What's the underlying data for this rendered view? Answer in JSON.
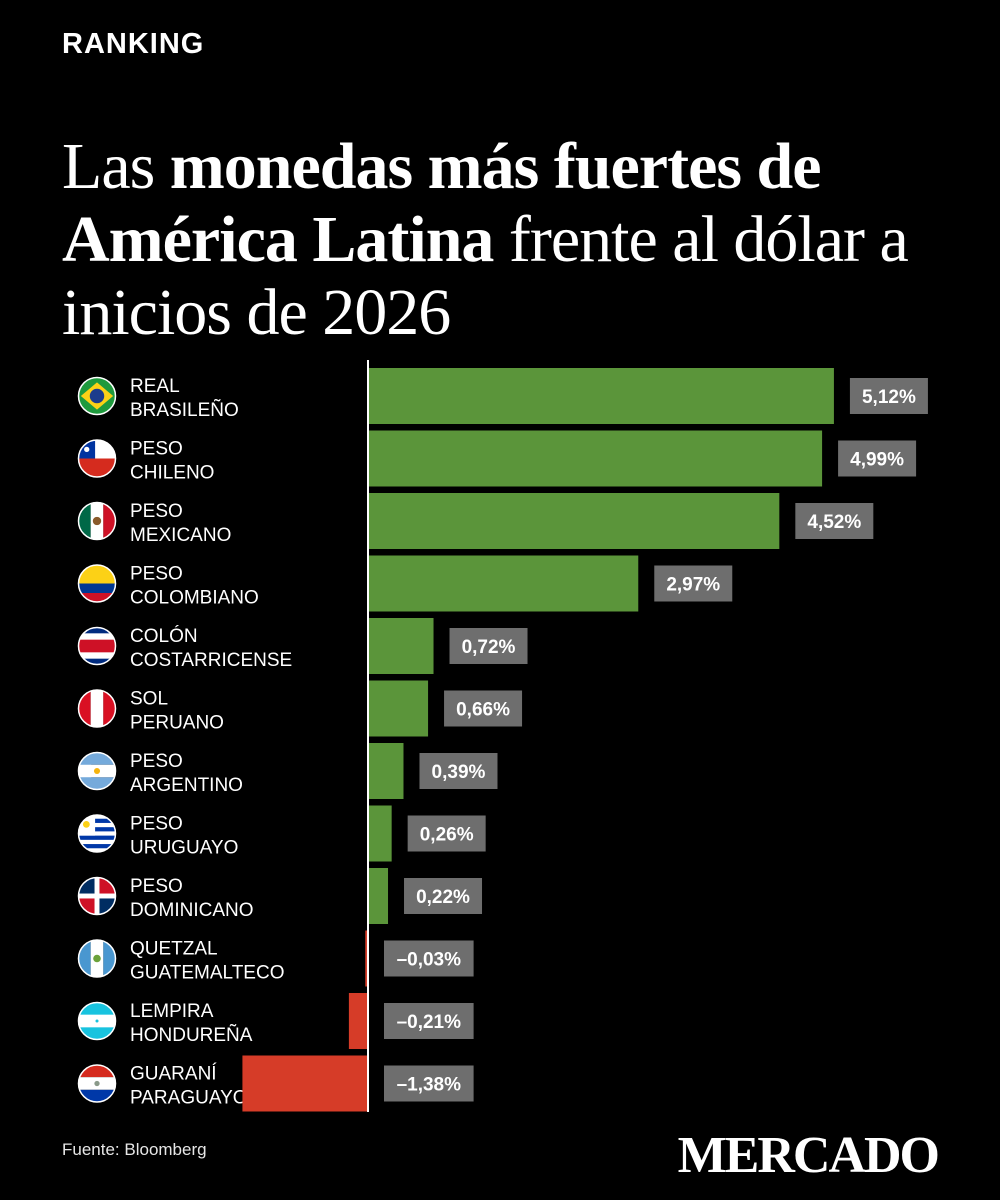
{
  "header": {
    "kicker": "RANKING",
    "title_p1": "Las ",
    "title_b1": "monedas más fuertes de América Latina",
    "title_p2": " frente al dólar a inicios de 2026"
  },
  "footer": {
    "source": "Fuente: Bloomberg",
    "logo": "MERCADO"
  },
  "colors": {
    "positive": "#5b953a",
    "negative": "#d63c28",
    "label_bg": "#6e6e6e",
    "axis": "#ffffff"
  },
  "chart_data": {
    "type": "bar",
    "orientation": "horizontal",
    "categories": [
      "REAL BRASILEÑO",
      "PESO CHILENO",
      "PESO MEXICANO",
      "PESO COLOMBIANO",
      "COLÓN COSTARRICENSE",
      "SOL PERUANO",
      "PESO ARGENTINO",
      "PESO URUGUAYO",
      "PESO DOMINICANO",
      "QUETZAL GUATEMALTECO",
      "LEMPIRA HONDUREÑA",
      "GUARANÍ PARAGUAYO"
    ],
    "category_lines": [
      [
        "REAL",
        "BRASILEÑO"
      ],
      [
        "PESO",
        "CHILENO"
      ],
      [
        "PESO",
        "MEXICANO"
      ],
      [
        "PESO",
        "COLOMBIANO"
      ],
      [
        "COLÓN",
        "COSTARRICENSE"
      ],
      [
        "SOL",
        "PERUANO"
      ],
      [
        "PESO",
        "ARGENTINO"
      ],
      [
        "PESO",
        "URUGUAYO"
      ],
      [
        "PESO",
        "DOMINICANO"
      ],
      [
        "QUETZAL",
        "GUATEMALTECO"
      ],
      [
        "LEMPIRA",
        "HONDUREÑA"
      ],
      [
        "GUARANÍ",
        "PARAGUAYO"
      ]
    ],
    "flags": [
      "brazil-flag-icon",
      "chile-flag-icon",
      "mexico-flag-icon",
      "colombia-flag-icon",
      "costa-rica-flag-icon",
      "peru-flag-icon",
      "argentina-flag-icon",
      "uruguay-flag-icon",
      "dominican-republic-flag-icon",
      "guatemala-flag-icon",
      "honduras-flag-icon",
      "paraguay-flag-icon"
    ],
    "values": [
      5.12,
      4.99,
      4.52,
      2.97,
      0.72,
      0.66,
      0.39,
      0.26,
      0.22,
      -0.03,
      -0.21,
      -1.38
    ],
    "value_labels": [
      "5,12%",
      "4,99%",
      "4,52%",
      "2,97%",
      "0,72%",
      "0,66%",
      "0,39%",
      "0,26%",
      "0,22%",
      "–0,03%",
      "–0,21%",
      "–1,38%"
    ],
    "unit": "%"
  }
}
